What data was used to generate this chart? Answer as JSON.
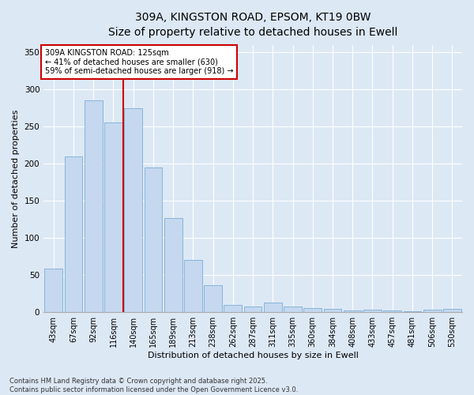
{
  "title_line1": "309A, KINGSTON ROAD, EPSOM, KT19 0BW",
  "title_line2": "Size of property relative to detached houses in Ewell",
  "xlabel": "Distribution of detached houses by size in Ewell",
  "ylabel": "Number of detached properties",
  "categories": [
    "43sqm",
    "67sqm",
    "92sqm",
    "116sqm",
    "140sqm",
    "165sqm",
    "189sqm",
    "213sqm",
    "238sqm",
    "262sqm",
    "287sqm",
    "311sqm",
    "335sqm",
    "360sqm",
    "384sqm",
    "408sqm",
    "433sqm",
    "457sqm",
    "481sqm",
    "506sqm",
    "530sqm"
  ],
  "values": [
    59,
    210,
    285,
    255,
    275,
    195,
    127,
    70,
    36,
    10,
    8,
    13,
    8,
    6,
    5,
    2,
    3,
    2,
    1,
    3,
    4
  ],
  "bar_color": "#c5d8f0",
  "bar_edge_color": "#7aadd4",
  "background_color": "#dde8f5",
  "grid_color": "#ffffff",
  "vline_color": "#cc0000",
  "vline_position": 3.5,
  "annotation_text": "309A KINGSTON ROAD: 125sqm\n← 41% of detached houses are smaller (630)\n59% of semi-detached houses are larger (918) →",
  "annotation_box_facecolor": "#ffffff",
  "annotation_box_edgecolor": "#cc0000",
  "ylim": [
    0,
    360
  ],
  "yticks": [
    0,
    50,
    100,
    150,
    200,
    250,
    300,
    350
  ],
  "footer_text": "Contains HM Land Registry data © Crown copyright and database right 2025.\nContains public sector information licensed under the Open Government Licence v3.0.",
  "title_fontsize": 10,
  "axis_label_fontsize": 8,
  "tick_fontsize": 7,
  "annotation_fontsize": 7,
  "footer_fontsize": 6
}
